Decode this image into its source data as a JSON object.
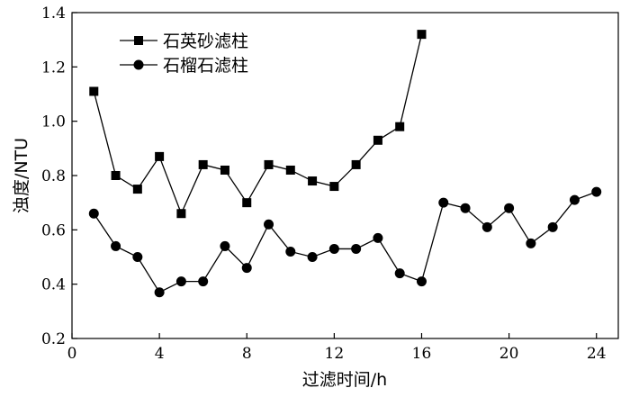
{
  "chart_data": {
    "type": "line",
    "xlabel": "过滤时间/h",
    "ylabel": "浊度/NTU",
    "xlim": [
      0,
      25
    ],
    "ylim": [
      0.2,
      1.4
    ],
    "xticks": [
      0,
      4,
      8,
      12,
      16,
      20,
      24
    ],
    "yticks": [
      0.2,
      0.4,
      0.6,
      0.8,
      1.0,
      1.2,
      1.4
    ],
    "xtick_labels": [
      "0",
      "4",
      "8",
      "12",
      "16",
      "20",
      "24"
    ],
    "ytick_labels": [
      "0.2",
      "0.4",
      "0.6",
      "0.8",
      "1.0",
      "1.2",
      "1.4"
    ],
    "grid": false,
    "legend_position": "top-left",
    "series": [
      {
        "name": "石英砂滤柱",
        "marker": "square",
        "x": [
          1,
          2,
          3,
          4,
          5,
          6,
          7,
          8,
          9,
          10,
          11,
          12,
          13,
          14,
          15,
          16
        ],
        "y": [
          1.11,
          0.8,
          0.75,
          0.87,
          0.66,
          0.84,
          0.82,
          0.7,
          0.84,
          0.82,
          0.78,
          0.76,
          0.84,
          0.93,
          0.98,
          1.32
        ]
      },
      {
        "name": "石榴石滤柱",
        "marker": "circle",
        "x": [
          1,
          2,
          3,
          4,
          5,
          6,
          7,
          8,
          9,
          10,
          11,
          12,
          13,
          14,
          15,
          16,
          17,
          18,
          19,
          20,
          21,
          22,
          23,
          24
        ],
        "y": [
          0.66,
          0.54,
          0.5,
          0.37,
          0.41,
          0.41,
          0.54,
          0.46,
          0.62,
          0.52,
          0.5,
          0.53,
          0.53,
          0.57,
          0.44,
          0.41,
          0.7,
          0.68,
          0.61,
          0.68,
          0.55,
          0.61,
          0.71,
          0.74
        ]
      }
    ]
  }
}
